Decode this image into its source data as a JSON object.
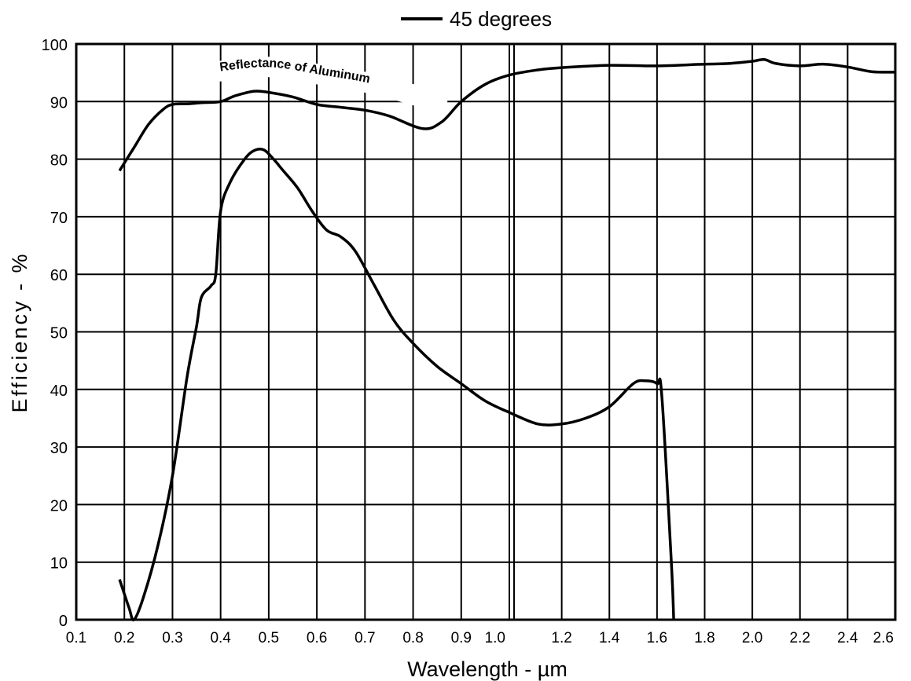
{
  "chart_data": {
    "type": "line",
    "title": "",
    "xlabel": "Wavelength - µm",
    "ylabel": "Efficiency - %",
    "ylim": [
      0,
      100
    ],
    "y_ticks": [
      "0",
      "10",
      "20",
      "30",
      "40",
      "50",
      "60",
      "70",
      "80",
      "90",
      "100"
    ],
    "x_ticks_left": [
      "0.1",
      "0.2",
      "0.3",
      "0.4",
      "0.5",
      "0.6",
      "0.7",
      "0.8",
      "0.9",
      "1.0"
    ],
    "x_ticks_right": [
      "1.0",
      "1.2",
      "1.4",
      "1.6",
      "1.8",
      "2.0",
      "2.2",
      "2.4",
      "2.6"
    ],
    "x_axis_note": "Split linear axis: 0.1–1.0 µm in 0.1 steps, then 1.0–2.6 µm in 0.2 steps (1.0 appears on both sides of the double gridline)",
    "grid": true,
    "legend": {
      "position": "top-center",
      "entries": [
        "45 degrees"
      ]
    },
    "series": [
      {
        "name": "45 degrees",
        "line_color": "#000000",
        "x": [
          0.19,
          0.21,
          0.22,
          0.24,
          0.27,
          0.3,
          0.33,
          0.35,
          0.36,
          0.38,
          0.39,
          0.4,
          0.42,
          0.45,
          0.47,
          0.49,
          0.51,
          0.53,
          0.56,
          0.59,
          0.62,
          0.65,
          0.68,
          0.72,
          0.76,
          0.8,
          0.85,
          0.9,
          0.95,
          1.0,
          1.1,
          1.2,
          1.3,
          1.4,
          1.5,
          1.55,
          1.6,
          1.62,
          1.66,
          1.67
        ],
        "values": [
          7,
          2,
          0,
          4,
          13,
          25,
          42,
          51,
          56,
          58,
          60,
          71,
          76,
          80,
          81.5,
          81.6,
          80,
          78,
          75,
          71,
          67.7,
          66.5,
          64,
          58,
          52,
          48,
          44,
          41,
          38,
          36,
          34,
          34,
          35,
          37,
          41,
          41.5,
          41,
          39,
          10,
          0
        ]
      },
      {
        "name": "",
        "line_color": "#000000",
        "x": [
          0.19,
          0.22,
          0.25,
          0.28,
          0.3,
          0.33,
          0.36,
          0.4,
          0.43,
          0.47,
          0.5,
          0.55,
          0.6,
          0.65,
          0.7,
          0.75,
          0.82,
          0.86,
          0.9,
          0.95,
          1.0,
          1.1,
          1.2,
          1.4,
          1.6,
          1.8,
          1.9,
          2.0,
          2.05,
          2.1,
          2.2,
          2.3,
          2.4,
          2.5,
          2.6
        ],
        "values": [
          78,
          82,
          86,
          88.6,
          89.5,
          89.6,
          89.8,
          90,
          91,
          91.8,
          91.6,
          90.8,
          89.5,
          89,
          88.5,
          87.5,
          85.3,
          86.5,
          90,
          93,
          94.6,
          95.5,
          95.9,
          96.3,
          96.2,
          96.5,
          96.6,
          97,
          97.3,
          96.6,
          96.2,
          96.5,
          96,
          95.2,
          95.1
        ]
      }
    ],
    "annotations": [
      {
        "text": "Reflectance of Aluminum",
        "attached_to": "upper curve"
      }
    ]
  }
}
